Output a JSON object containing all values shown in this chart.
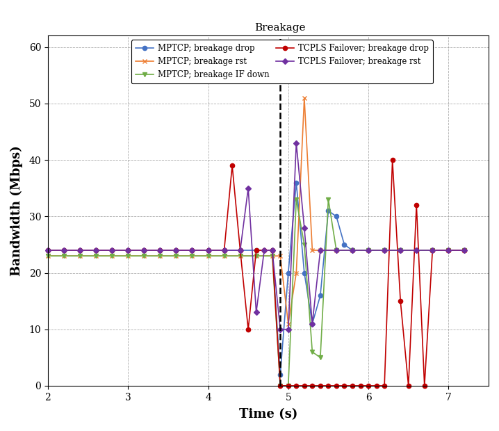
{
  "title": "Breakage",
  "xlabel": "Time (s)",
  "ylabel": "Bandwidth (Mbps)",
  "xlim": [
    2,
    7.5
  ],
  "ylim": [
    0,
    62
  ],
  "yticks": [
    0,
    10,
    20,
    30,
    40,
    50,
    60
  ],
  "xticks": [
    2,
    3,
    4,
    5,
    6,
    7
  ],
  "breakage_x": 4.9,
  "series": [
    {
      "key": "mptcp_drop",
      "label": "MPTCP; breakage drop",
      "color": "#4472C4",
      "marker": "o",
      "markersize": 4.5,
      "x": [
        2.0,
        2.2,
        2.4,
        2.6,
        2.8,
        3.0,
        3.2,
        3.4,
        3.6,
        3.8,
        4.0,
        4.2,
        4.4,
        4.6,
        4.8,
        4.9,
        5.0,
        5.1,
        5.2,
        5.3,
        5.4,
        5.5,
        5.6,
        5.7,
        5.8,
        6.0,
        6.2,
        6.4,
        6.6,
        6.8,
        7.0,
        7.2
      ],
      "y": [
        24,
        24,
        24,
        24,
        24,
        24,
        24,
        24,
        24,
        24,
        24,
        24,
        24,
        24,
        24,
        2,
        20,
        36,
        20,
        11,
        16,
        31,
        30,
        25,
        24,
        24,
        24,
        24,
        24,
        24,
        24,
        24
      ]
    },
    {
      "key": "mptcp_rst",
      "label": "MPTCP; breakage rst",
      "color": "#ED7D31",
      "marker": "x",
      "markersize": 5,
      "x": [
        2.0,
        2.2,
        2.4,
        2.6,
        2.8,
        3.0,
        3.2,
        3.4,
        3.6,
        3.8,
        4.0,
        4.2,
        4.4,
        4.6,
        4.8,
        4.9,
        5.0,
        5.1,
        5.2,
        5.3,
        5.4,
        5.6,
        5.8,
        6.0,
        6.2,
        6.4,
        6.6,
        6.8,
        7.0,
        7.2
      ],
      "y": [
        23,
        23,
        23,
        23,
        23,
        23,
        23,
        23,
        23,
        23,
        23,
        23,
        23,
        23,
        23,
        23,
        11,
        20,
        51,
        24,
        24,
        24,
        24,
        24,
        24,
        24,
        24,
        24,
        24,
        24
      ]
    },
    {
      "key": "mptcp_ifdown",
      "label": "MPTCP; breakage IF down",
      "color": "#70AD47",
      "marker": "v",
      "markersize": 5,
      "x": [
        2.0,
        2.2,
        2.4,
        2.6,
        2.8,
        3.0,
        3.2,
        3.4,
        3.6,
        3.8,
        4.0,
        4.2,
        4.4,
        4.6,
        4.8,
        4.9,
        5.0,
        5.1,
        5.2,
        5.3,
        5.4,
        5.5,
        5.6,
        5.8,
        6.0,
        6.2,
        6.4,
        6.6,
        6.8,
        7.0,
        7.2
      ],
      "y": [
        23,
        23,
        23,
        23,
        23,
        23,
        23,
        23,
        23,
        23,
        23,
        23,
        23,
        23,
        23,
        0,
        0,
        33,
        25,
        6,
        5,
        33,
        24,
        24,
        24,
        24,
        24,
        24,
        24,
        24,
        24
      ]
    },
    {
      "key": "tcpls_drop",
      "label": "TCPLS Failover; breakage drop",
      "color": "#C00000",
      "marker": "o",
      "markersize": 4.5,
      "x": [
        2.0,
        2.2,
        2.4,
        2.6,
        2.8,
        3.0,
        3.2,
        3.4,
        3.6,
        3.8,
        4.0,
        4.2,
        4.3,
        4.4,
        4.5,
        4.6,
        4.7,
        4.8,
        4.9,
        5.0,
        5.1,
        5.2,
        5.3,
        5.4,
        5.5,
        5.6,
        5.7,
        5.8,
        5.9,
        6.0,
        6.1,
        6.2,
        6.3,
        6.4,
        6.5,
        6.6,
        6.7,
        6.8,
        7.0,
        7.2
      ],
      "y": [
        24,
        24,
        24,
        24,
        24,
        24,
        24,
        24,
        24,
        24,
        24,
        24,
        39,
        24,
        10,
        24,
        24,
        24,
        0,
        0,
        0,
        0,
        0,
        0,
        0,
        0,
        0,
        0,
        0,
        0,
        0,
        0,
        40,
        15,
        0,
        32,
        0,
        24,
        24,
        24
      ]
    },
    {
      "key": "tcpls_rst",
      "label": "TCPLS Failover; breakage rst",
      "color": "#7030A0",
      "marker": "D",
      "markersize": 4,
      "x": [
        2.0,
        2.2,
        2.4,
        2.6,
        2.8,
        3.0,
        3.2,
        3.4,
        3.6,
        3.8,
        4.0,
        4.2,
        4.4,
        4.5,
        4.6,
        4.7,
        4.8,
        4.9,
        5.0,
        5.1,
        5.2,
        5.3,
        5.4,
        5.6,
        5.8,
        6.0,
        6.2,
        6.4,
        6.6,
        6.8,
        7.0,
        7.2
      ],
      "y": [
        24,
        24,
        24,
        24,
        24,
        24,
        24,
        24,
        24,
        24,
        24,
        24,
        24,
        35,
        13,
        24,
        24,
        10,
        10,
        43,
        28,
        11,
        24,
        24,
        24,
        24,
        24,
        24,
        24,
        24,
        24,
        24
      ]
    }
  ]
}
